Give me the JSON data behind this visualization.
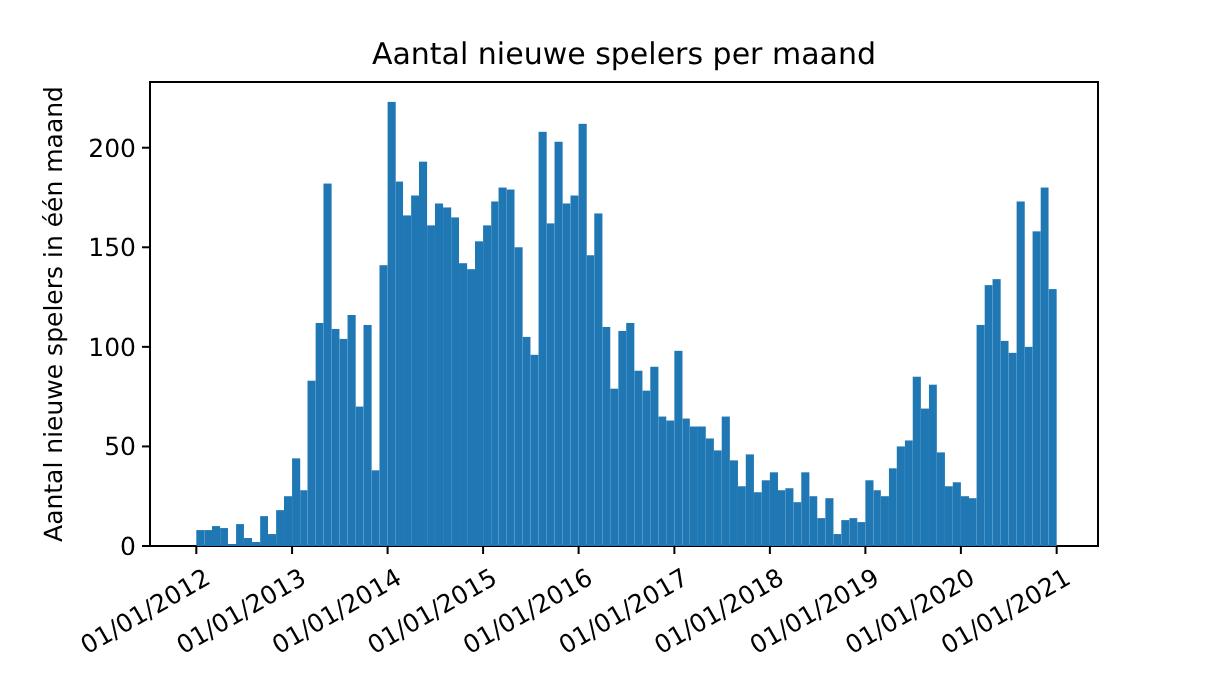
{
  "chart_data": {
    "type": "bar",
    "title": "Aantal nieuwe spelers per maand",
    "ylabel": "Aantal nieuwe spelers in één maand",
    "x": [
      "2012-01",
      "2012-02",
      "2012-03",
      "2012-04",
      "2012-05",
      "2012-06",
      "2012-07",
      "2012-08",
      "2012-09",
      "2012-10",
      "2012-11",
      "2012-12",
      "2013-01",
      "2013-02",
      "2013-03",
      "2013-04",
      "2013-05",
      "2013-06",
      "2013-07",
      "2013-08",
      "2013-09",
      "2013-10",
      "2013-11",
      "2013-12",
      "2014-01",
      "2014-02",
      "2014-03",
      "2014-04",
      "2014-05",
      "2014-06",
      "2014-07",
      "2014-08",
      "2014-09",
      "2014-10",
      "2014-11",
      "2014-12",
      "2015-01",
      "2015-02",
      "2015-03",
      "2015-04",
      "2015-05",
      "2015-06",
      "2015-07",
      "2015-08",
      "2015-09",
      "2015-10",
      "2015-11",
      "2015-12",
      "2016-01",
      "2016-02",
      "2016-03",
      "2016-04",
      "2016-05",
      "2016-06",
      "2016-07",
      "2016-08",
      "2016-09",
      "2016-10",
      "2016-11",
      "2016-12",
      "2017-01",
      "2017-02",
      "2017-03",
      "2017-04",
      "2017-05",
      "2017-06",
      "2017-07",
      "2017-08",
      "2017-09",
      "2017-10",
      "2017-11",
      "2017-12",
      "2018-01",
      "2018-02",
      "2018-03",
      "2018-04",
      "2018-05",
      "2018-06",
      "2018-07",
      "2018-08",
      "2018-09",
      "2018-10",
      "2018-11",
      "2018-12",
      "2019-01",
      "2019-02",
      "2019-03",
      "2019-04",
      "2019-05",
      "2019-06",
      "2019-07",
      "2019-08",
      "2019-09",
      "2019-10",
      "2019-11",
      "2019-12",
      "2020-01",
      "2020-02",
      "2020-03",
      "2020-04",
      "2020-05",
      "2020-06",
      "2020-07",
      "2020-08",
      "2020-09",
      "2020-10",
      "2020-11",
      "2020-12"
    ],
    "values": [
      8,
      8,
      10,
      9,
      1,
      11,
      4,
      2,
      15,
      6,
      18,
      25,
      44,
      28,
      83,
      112,
      182,
      109,
      104,
      116,
      70,
      111,
      38,
      141,
      223,
      183,
      166,
      176,
      193,
      161,
      172,
      170,
      165,
      142,
      139,
      153,
      161,
      173,
      180,
      179,
      150,
      105,
      96,
      208,
      162,
      203,
      172,
      176,
      212,
      146,
      167,
      110,
      79,
      108,
      112,
      88,
      78,
      90,
      65,
      63,
      98,
      64,
      60,
      60,
      54,
      48,
      65,
      43,
      30,
      46,
      27,
      33,
      37,
      28,
      29,
      22,
      37,
      25,
      14,
      24,
      6,
      13,
      14,
      12,
      33,
      28,
      25,
      39,
      50,
      53,
      85,
      69,
      81,
      47,
      30,
      32,
      25,
      24,
      111,
      131,
      134,
      103,
      97,
      173,
      100,
      158,
      180,
      129
    ],
    "color": "#1f77b4",
    "xlim": [
      "2011-07-08",
      "2021-06-08"
    ],
    "xticks": [
      {
        "value": "2012-01-01",
        "label": "01/01/2012"
      },
      {
        "value": "2013-01-01",
        "label": "01/01/2013"
      },
      {
        "value": "2014-01-01",
        "label": "01/01/2014"
      },
      {
        "value": "2015-01-01",
        "label": "01/01/2015"
      },
      {
        "value": "2016-01-01",
        "label": "01/01/2016"
      },
      {
        "value": "2017-01-01",
        "label": "01/01/2017"
      },
      {
        "value": "2018-01-01",
        "label": "01/01/2018"
      },
      {
        "value": "2019-01-01",
        "label": "01/01/2019"
      },
      {
        "value": "2020-01-01",
        "label": "01/01/2020"
      },
      {
        "value": "2021-01-01",
        "label": "01/01/2021"
      }
    ],
    "ylim": [
      0,
      233
    ],
    "yticks": [
      0,
      50,
      100,
      150,
      200
    ]
  }
}
